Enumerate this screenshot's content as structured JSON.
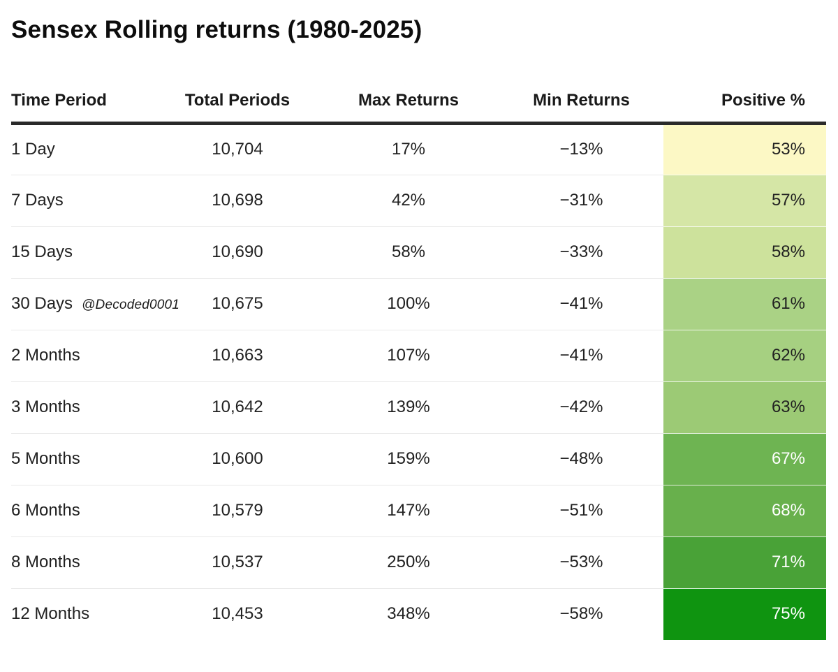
{
  "title": "Sensex Rolling returns (1980-2025)",
  "watermark": "@Decoded0001",
  "colors": {
    "header_rule": "#2a2a2a",
    "row_separator": "#e9e9e9",
    "heatmap_low": "#fcf8c5",
    "heatmap_high": "#0f9410"
  },
  "table": {
    "headers": {
      "time_period": "Time Period",
      "total_periods": "Total Periods",
      "max_returns": "Max Returns",
      "min_returns": "Min Returns",
      "positive_pct": "Positive %"
    },
    "rows": [
      {
        "time_period": "1 Day",
        "total_periods": "10,704",
        "max_returns": "17%",
        "min_returns": "−13%",
        "positive_pct": "53%",
        "positive_bg": "#fcf8c5",
        "positive_text": "#212121"
      },
      {
        "time_period": "7 Days",
        "total_periods": "10,698",
        "max_returns": "42%",
        "min_returns": "−31%",
        "positive_pct": "57%",
        "positive_bg": "#d5e6a6",
        "positive_text": "#212121"
      },
      {
        "time_period": "15 Days",
        "total_periods": "10,690",
        "max_returns": "58%",
        "min_returns": "−33%",
        "positive_pct": "58%",
        "positive_bg": "#cde29c",
        "positive_text": "#212121"
      },
      {
        "time_period": "30 Days",
        "total_periods": "10,675",
        "max_returns": "100%",
        "min_returns": "−41%",
        "positive_pct": "61%",
        "positive_bg": "#aad285",
        "positive_text": "#212121"
      },
      {
        "time_period": "2 Months",
        "total_periods": "10,663",
        "max_returns": "107%",
        "min_returns": "−41%",
        "positive_pct": "62%",
        "positive_bg": "#a6d081",
        "positive_text": "#212121"
      },
      {
        "time_period": "3 Months",
        "total_periods": "10,642",
        "max_returns": "139%",
        "min_returns": "−42%",
        "positive_pct": "63%",
        "positive_bg": "#9cca75",
        "positive_text": "#212121"
      },
      {
        "time_period": "5 Months",
        "total_periods": "10,600",
        "max_returns": "159%",
        "min_returns": "−48%",
        "positive_pct": "67%",
        "positive_bg": "#6eb452",
        "positive_text": "#ffffff"
      },
      {
        "time_period": "6 Months",
        "total_periods": "10,579",
        "max_returns": "147%",
        "min_returns": "−51%",
        "positive_pct": "68%",
        "positive_bg": "#68b04c",
        "positive_text": "#ffffff"
      },
      {
        "time_period": "8 Months",
        "total_periods": "10,537",
        "max_returns": "250%",
        "min_returns": "−53%",
        "positive_pct": "71%",
        "positive_bg": "#49a237",
        "positive_text": "#ffffff"
      },
      {
        "time_period": "12 Months",
        "total_periods": "10,453",
        "max_returns": "348%",
        "min_returns": "−58%",
        "positive_pct": "75%",
        "positive_bg": "#0f9410",
        "positive_text": "#ffffff"
      }
    ]
  },
  "chart_data": {
    "type": "table",
    "title": "Sensex Rolling returns (1980-2025)",
    "columns": [
      "Time Period",
      "Total Periods",
      "Max Returns",
      "Min Returns",
      "Positive %"
    ],
    "rows": [
      [
        "1 Day",
        10704,
        17,
        -13,
        53
      ],
      [
        "7 Days",
        10698,
        42,
        -31,
        57
      ],
      [
        "15 Days",
        10690,
        58,
        -33,
        58
      ],
      [
        "30 Days",
        10675,
        100,
        -41,
        61
      ],
      [
        "2 Months",
        10663,
        107,
        -41,
        62
      ],
      [
        "3 Months",
        10642,
        139,
        -42,
        63
      ],
      [
        "5 Months",
        10600,
        159,
        -48,
        67
      ],
      [
        "6 Months",
        10579,
        147,
        -51,
        68
      ],
      [
        "8 Months",
        10537,
        250,
        -53,
        71
      ],
      [
        "12 Months",
        10453,
        348,
        -58,
        75
      ]
    ],
    "notes": "Max Returns, Min Returns and Positive % are percentages; Positive % column is shaded as a yellow-to-green heatmap increasing with value"
  }
}
